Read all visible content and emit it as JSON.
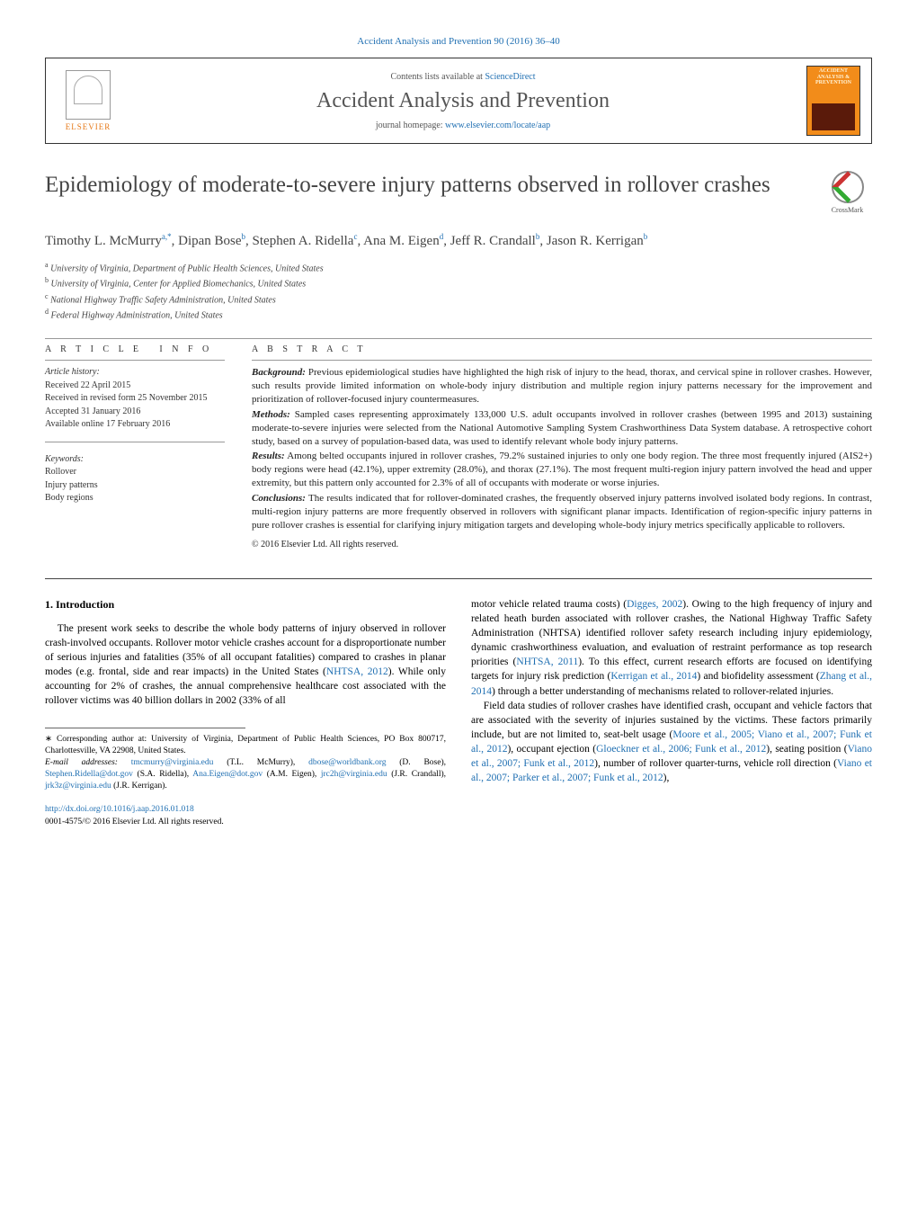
{
  "journal": {
    "header_link": "Accident Analysis and Prevention 90 (2016) 36–40",
    "contents_prefix": "Contents lists available at ",
    "contents_link": "ScienceDirect",
    "name": "Accident Analysis and Prevention",
    "homepage_prefix": "journal homepage: ",
    "homepage_url": "www.elsevier.com/locate/aap",
    "publisher": "ELSEVIER",
    "cover_text": "ACCIDENT ANALYSIS & PREVENTION"
  },
  "crossmark": {
    "label": "CrossMark"
  },
  "title": "Epidemiology of moderate-to-severe injury patterns observed in rollover crashes",
  "authors_html": "Timothy L. McMurry",
  "authors": [
    {
      "name": "Timothy L. McMurry",
      "aff": "a,*"
    },
    {
      "name": "Dipan Bose",
      "aff": "b"
    },
    {
      "name": "Stephen A. Ridella",
      "aff": "c"
    },
    {
      "name": "Ana M. Eigen",
      "aff": "d"
    },
    {
      "name": "Jeff R. Crandall",
      "aff": "b"
    },
    {
      "name": "Jason R. Kerrigan",
      "aff": "b"
    }
  ],
  "affiliations": [
    {
      "sup": "a",
      "text": "University of Virginia, Department of Public Health Sciences, United States"
    },
    {
      "sup": "b",
      "text": "University of Virginia, Center for Applied Biomechanics, United States"
    },
    {
      "sup": "c",
      "text": "National Highway Traffic Safety Administration, United States"
    },
    {
      "sup": "d",
      "text": "Federal Highway Administration, United States"
    }
  ],
  "article_info": {
    "header": "article info",
    "history_label": "Article history:",
    "received": "Received 22 April 2015",
    "revised": "Received in revised form 25 November 2015",
    "accepted": "Accepted 31 January 2016",
    "online": "Available online 17 February 2016",
    "keywords_label": "Keywords:",
    "keywords": [
      "Rollover",
      "Injury patterns",
      "Body regions"
    ]
  },
  "abstract": {
    "header": "abstract",
    "background_label": "Background:",
    "background": " Previous epidemiological studies have highlighted the high risk of injury to the head, thorax, and cervical spine in rollover crashes. However, such results provide limited information on whole-body injury distribution and multiple region injury patterns necessary for the improvement and prioritization of rollover-focused injury countermeasures.",
    "methods_label": "Methods:",
    "methods": " Sampled cases representing approximately 133,000 U.S. adult occupants involved in rollover crashes (between 1995 and 2013) sustaining moderate-to-severe injuries were selected from the National Automotive Sampling System Crashworthiness Data System database. A retrospective cohort study, based on a survey of population-based data, was used to identify relevant whole body injury patterns.",
    "results_label": "Results:",
    "results": " Among belted occupants injured in rollover crashes, 79.2% sustained injuries to only one body region. The three most frequently injured (AIS2+) body regions were head (42.1%), upper extremity (28.0%), and thorax (27.1%). The most frequent multi-region injury pattern involved the head and upper extremity, but this pattern only accounted for 2.3% of all of occupants with moderate or worse injuries.",
    "conclusions_label": "Conclusions:",
    "conclusions": " The results indicated that for rollover-dominated crashes, the frequently observed injury patterns involved isolated body regions. In contrast, multi-region injury patterns are more frequently observed in rollovers with significant planar impacts. Identification of region-specific injury patterns in pure rollover crashes is essential for clarifying injury mitigation targets and developing whole-body injury metrics specifically applicable to rollovers.",
    "copyright": "© 2016 Elsevier Ltd. All rights reserved."
  },
  "body": {
    "section_number": "1.",
    "section_title": "Introduction",
    "col1_para": "The present work seeks to describe the whole body patterns of injury observed in rollover crash-involved occupants. Rollover motor vehicle crashes account for a disproportionate number of serious injuries and fatalities (35% of all occupant fatalities) compared to crashes in planar modes (e.g. frontal, side and rear impacts) in the United States (",
    "col1_ref1": "NHTSA, 2012",
    "col1_para_b": "). While only accounting for 2% of crashes, the annual comprehensive healthcare cost associated with the rollover victims was 40 billion dollars in 2002 (33% of all",
    "col2_para1_a": "motor vehicle related trauma costs) (",
    "col2_ref1": "Digges, 2002",
    "col2_para1_b": "). Owing to the high frequency of injury and related heath burden associated with rollover crashes, the National Highway Traffic Safety Administration (NHTSA) identified rollover safety research including injury epidemiology, dynamic crashworthiness evaluation, and evaluation of restraint performance as top research priorities (",
    "col2_ref2": "NHTSA, 2011",
    "col2_para1_c": "). To this effect, current research efforts are focused on identifying targets for injury risk prediction (",
    "col2_ref3": "Kerrigan et al., 2014",
    "col2_para1_d": ") and biofidelity assessment (",
    "col2_ref4": "Zhang et al., 2014",
    "col2_para1_e": ") through a better understanding of mechanisms related to rollover-related injuries.",
    "col2_para2_a": "Field data studies of rollover crashes have identified crash, occupant and vehicle factors that are associated with the severity of injuries sustained by the victims. These factors primarily include, but are not limited to, seat-belt usage (",
    "col2_ref5": "Moore et al., 2005; Viano et al., 2007; Funk et al., 2012",
    "col2_para2_b": "), occupant ejection (",
    "col2_ref6": "Gloeckner et al., 2006; Funk et al., 2012",
    "col2_para2_c": "), seating position (",
    "col2_ref7": "Viano et al., 2007; Funk et al., 2012",
    "col2_para2_d": "), number of rollover quarter-turns, vehicle roll direction (",
    "col2_ref8": "Viano et al., 2007; Parker et al., 2007; Funk et al., 2012",
    "col2_para2_e": "),"
  },
  "footnotes": {
    "corr_label": "∗",
    "corr_text": " Corresponding author at: University of Virginia, Department of Public Health Sciences, PO Box 800717, Charlottesville, VA 22908, United States.",
    "email_label": "E-mail addresses: ",
    "emails": [
      {
        "addr": "tmcmurry@virginia.edu",
        "who": " (T.L. McMurry),"
      },
      {
        "addr": "dbose@worldbank.org",
        "who": " (D. Bose), "
      },
      {
        "addr": "Stephen.Ridella@dot.gov",
        "who": " (S.A. Ridella),"
      },
      {
        "addr": "Ana.Eigen@dot.gov",
        "who": " (A.M. Eigen), "
      },
      {
        "addr": "jrc2h@virginia.edu",
        "who": " (J.R. Crandall),"
      },
      {
        "addr": "jrk3z@virginia.edu",
        "who": " (J.R. Kerrigan)."
      }
    ]
  },
  "doi": {
    "url": "http://dx.doi.org/10.1016/j.aap.2016.01.018",
    "copyright": "0001-4575/© 2016 Elsevier Ltd. All rights reserved."
  },
  "colors": {
    "link": "#1f6fb2",
    "elsevier_orange": "#e67817",
    "cover_bg": "#f28c1a"
  }
}
